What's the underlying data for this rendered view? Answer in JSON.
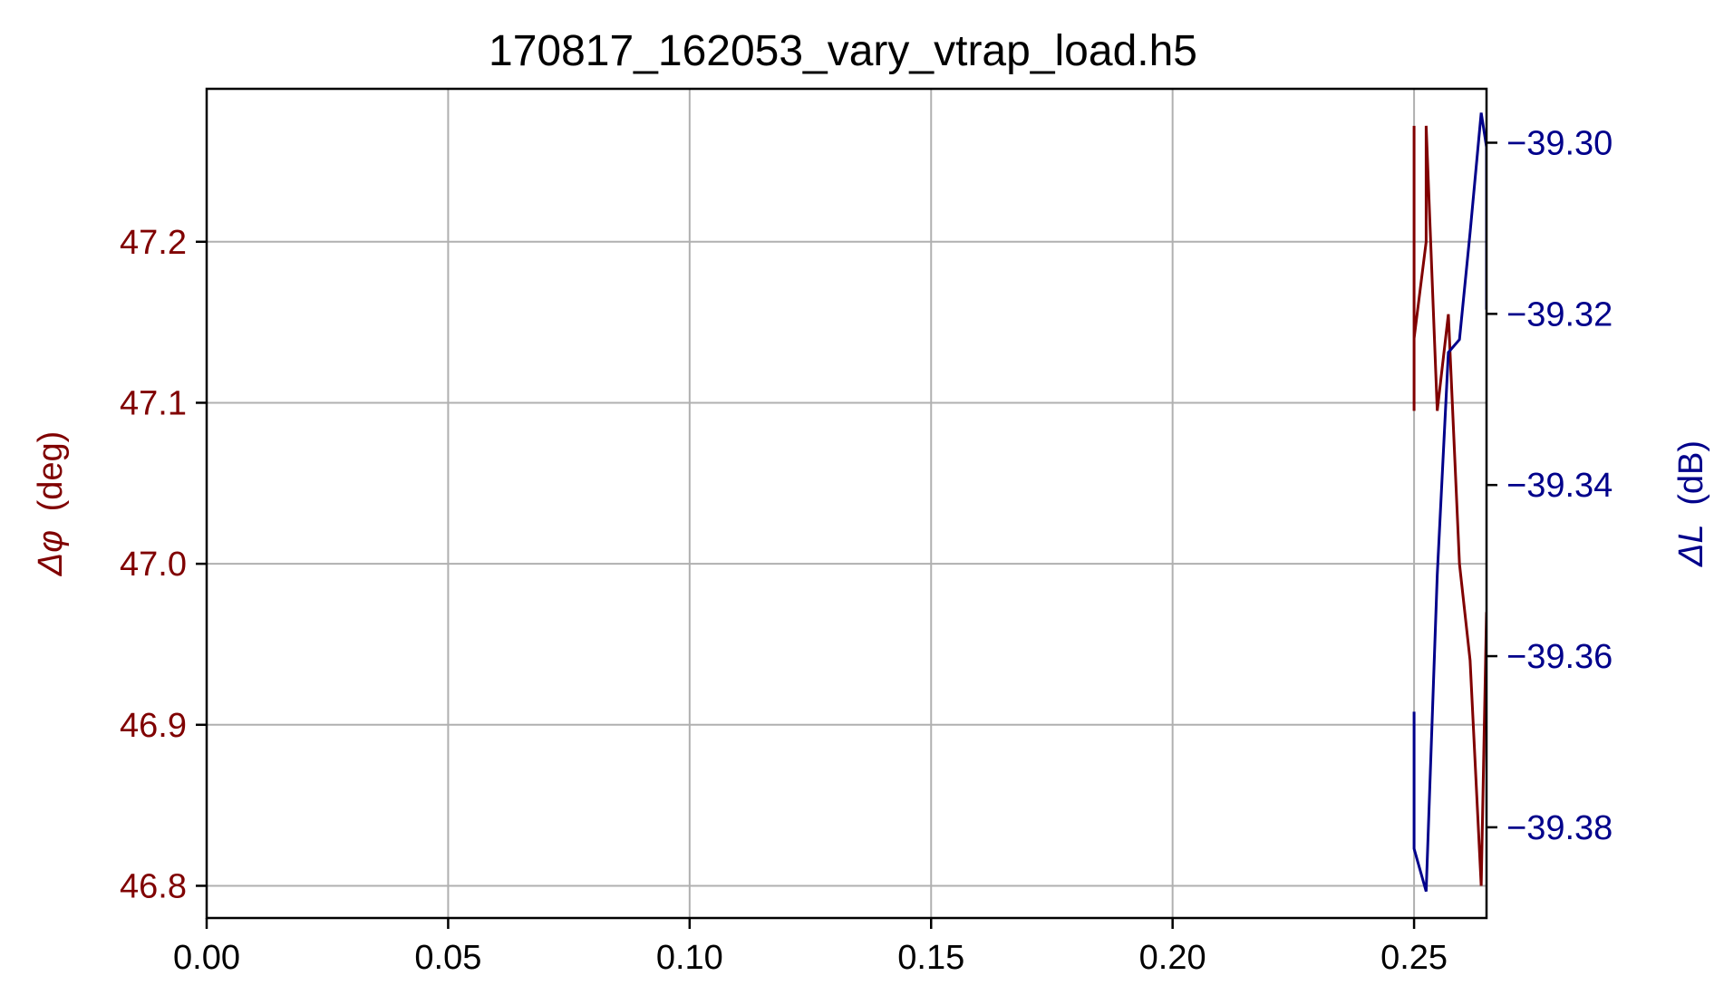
{
  "chart_data": {
    "type": "line",
    "title": "170817_162053_vary_vtrap_load.h5",
    "xlabel": "",
    "xlim": [
      0.0,
      0.265
    ],
    "xticks": [
      "0.00",
      "0.05",
      "0.10",
      "0.15",
      "0.20",
      "0.25"
    ],
    "xtick_values": [
      0.0,
      0.05,
      0.1,
      0.15,
      0.2,
      0.25
    ],
    "grid": true,
    "left_axis": {
      "label_symbol": "Δφ",
      "label_unit": "(deg)",
      "color": "#800000",
      "ylim": [
        46.78,
        47.295
      ],
      "ticks": [
        "46.8",
        "46.9",
        "47.0",
        "47.1",
        "47.2"
      ],
      "tick_values": [
        46.8,
        46.9,
        47.0,
        47.1,
        47.2
      ]
    },
    "right_axis": {
      "label_symbol": "ΔL",
      "label_unit": "(dB)",
      "color": "#00008b",
      "ylim": [
        -39.3906,
        -39.2937
      ],
      "ticks": [
        "−39.38",
        "−39.36",
        "−39.34",
        "−39.32",
        "−39.30"
      ],
      "tick_values": [
        -39.38,
        -39.36,
        -39.34,
        -39.32,
        -39.3
      ]
    },
    "series": [
      {
        "axis": "left",
        "color": "#800000",
        "x": [
          0.25,
          0.25,
          0.25,
          0.25,
          0.2525,
          0.2525,
          0.2548,
          0.2571,
          0.2594,
          0.2616,
          0.2639,
          0.265
        ],
        "y": [
          47.095,
          47.14,
          47.272,
          47.14,
          47.2,
          47.272,
          47.095,
          47.155,
          47.0,
          46.94,
          46.8,
          46.97
        ]
      },
      {
        "axis": "right",
        "color": "#00008b",
        "x": [
          0.25,
          0.25,
          0.25,
          0.2525,
          0.2548,
          0.2571,
          0.2594,
          0.2616,
          0.2639,
          0.265,
          0.265
        ],
        "y": [
          -39.3665,
          -39.3815,
          -39.3825,
          -39.3875,
          -39.3505,
          -39.3245,
          -39.323,
          -39.3105,
          -39.2965,
          -39.3005,
          -39.3195
        ]
      }
    ]
  }
}
